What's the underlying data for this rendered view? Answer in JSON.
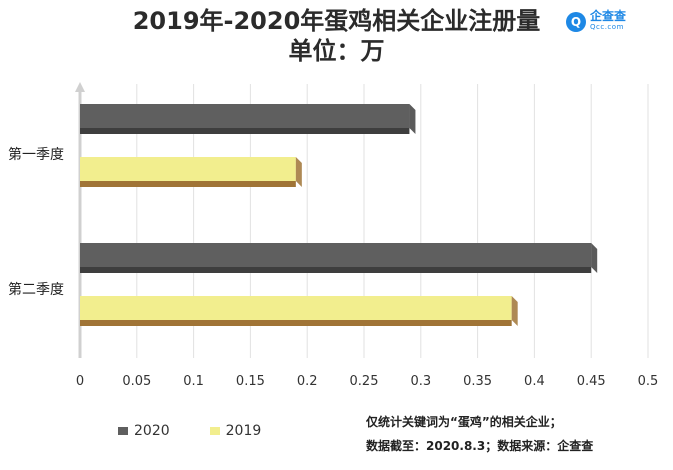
{
  "title_line1": "2019年-2020年蛋鸡相关企业注册量",
  "title_line2": "单位：万",
  "logo": {
    "cn": "企查查",
    "en": "Qcc.com",
    "mark": "Q"
  },
  "note_line1": "仅统计关键词为“蛋鸡”的相关企业；",
  "note_line2": "数据截至：2020.8.3；数据来源：企查查",
  "colors": {
    "s2020": "#5f5f5f",
    "s2019": "#f2ee8e",
    "s2020_side": "#3e3e3e",
    "s2019_side": "#a07436",
    "grid": "#e2e2e2"
  },
  "chart_data": {
    "type": "bar",
    "orientation": "horizontal",
    "title": "2019年-2020年蛋鸡相关企业注册量",
    "unit": "单位：万",
    "categories": [
      "第一季度",
      "第二季度"
    ],
    "series": [
      {
        "name": "2020",
        "values": [
          0.29,
          0.45
        ]
      },
      {
        "name": "2019",
        "values": [
          0.19,
          0.38
        ]
      }
    ],
    "xlim": [
      0,
      0.5
    ],
    "xticks": [
      "0",
      "0.05",
      "0.1",
      "0.15",
      "0.2",
      "0.25",
      "0.3",
      "0.35",
      "0.4",
      "0.45",
      "0.5"
    ],
    "legend": "bottom-left",
    "grid": true
  }
}
